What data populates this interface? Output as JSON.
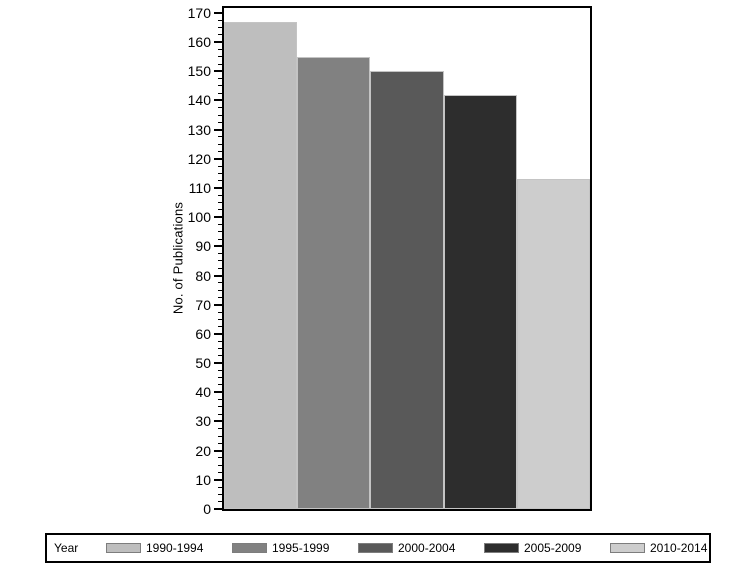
{
  "chart_data": {
    "type": "bar",
    "title": "",
    "categories": [
      "1990-1994",
      "1995-1999",
      "2000-2004",
      "2005-2009",
      "2010-2014"
    ],
    "values": [
      167,
      155,
      150,
      142,
      113
    ],
    "bar_colors": [
      "#bebebe",
      "#818181",
      "#595959",
      "#2d2d2d",
      "#cdcdcd"
    ],
    "xlabel": "",
    "ylabel": "No. of Publications",
    "ylim": [
      0,
      170
    ],
    "ytick_major": 10,
    "ytick_minor": 2.5,
    "ytick_labels": [
      "0",
      "10",
      "20",
      "30",
      "40",
      "50",
      "60",
      "70",
      "80",
      "90",
      "100",
      "110",
      "120",
      "130",
      "140",
      "150",
      "160",
      "170"
    ],
    "grid": false,
    "legend": {
      "title": "Year",
      "position": "bottom",
      "entries": [
        {
          "label": "1990-1994",
          "color": "#bebebe"
        },
        {
          "label": "1995-1999",
          "color": "#818181"
        },
        {
          "label": "2000-2004",
          "color": "#595959"
        },
        {
          "label": "2005-2009",
          "color": "#2d2d2d"
        },
        {
          "label": "2010-2014",
          "color": "#cdcdcd"
        }
      ]
    }
  }
}
